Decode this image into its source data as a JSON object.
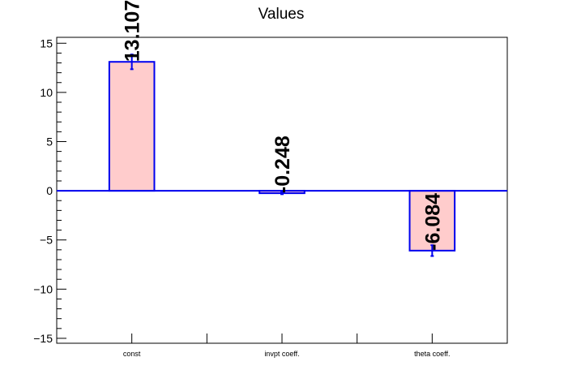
{
  "chart_data": {
    "type": "bar",
    "title": "Values",
    "categories": [
      "const",
      "invpt coeff.",
      "theta coeff."
    ],
    "values": [
      13.107,
      -0.248,
      -6.084
    ],
    "value_labels": [
      "13.107",
      "-0.248",
      "-6.084"
    ],
    "errors": [
      0.75,
      0.1,
      0.55
    ],
    "ylim": [
      -15.5,
      15.6
    ],
    "y_ticks": [
      -15,
      -10,
      -5,
      0,
      5,
      10,
      15
    ],
    "y_tick_labels": [
      "−15",
      "−10",
      "−5",
      "0",
      "5",
      "10",
      "15"
    ],
    "xlabel": "",
    "ylabel": "",
    "grid": false,
    "colors": {
      "bar_fill": "#ffcccc",
      "bar_edge": "#0000ee",
      "zero_line": "#0000ee",
      "axis": "#000000"
    }
  }
}
